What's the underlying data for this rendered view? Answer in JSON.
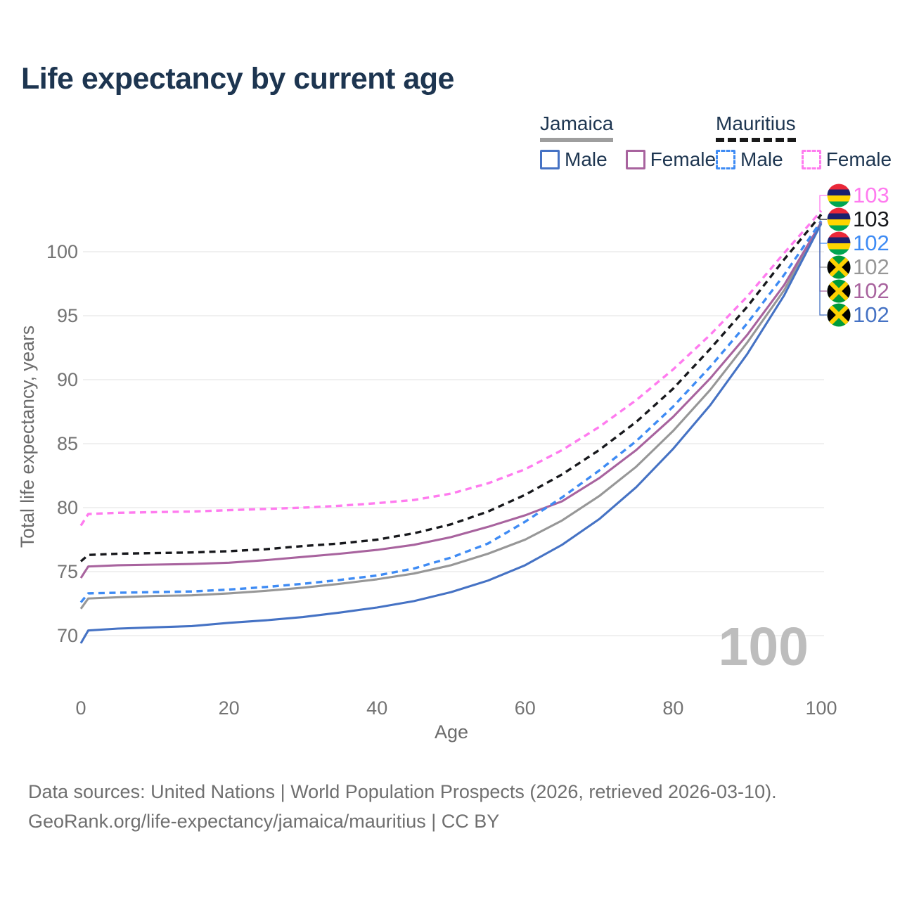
{
  "title": "Life expectancy by current age",
  "legend": {
    "jamaica": {
      "label": "Jamaica",
      "male_label": "Male",
      "female_label": "Female"
    },
    "mauritius": {
      "label": "Mauritius",
      "male_label": "Male",
      "female_label": "Female"
    }
  },
  "watermark_age": "100",
  "footer": {
    "line1": "Data sources: United Nations | World Population Prospects (2026, retrieved 2026-03-10).",
    "line2": "GeoRank.org/life-expectancy/jamaica/mauritius | CC BY"
  },
  "colors": {
    "jamaica_male": "#4572c4",
    "jamaica_female": "#a8639e",
    "jamaica_both": "#979797",
    "mauritius_male": "#3e8bf4",
    "mauritius_female": "#ff7bef",
    "mauritius_both": "#17181c",
    "title_text": "#1d3550",
    "axis_text": "#737373",
    "grid": "#ebebeb",
    "watermark": "#bdbdbd",
    "footer_text": "#6f6f6f",
    "jamaica_underline": "#9e9e9e",
    "mauritius_underline": "#1a1a1a"
  },
  "flags": {
    "mauritius_bands": [
      "#EA2839",
      "#1A206D",
      "#FFD500",
      "#00A551"
    ],
    "jamaica": {
      "green": "#009B3A",
      "black": "#000000",
      "gold": "#FED100"
    }
  },
  "chart_data": {
    "type": "line",
    "title": "Life expectancy by current age",
    "xlabel": "Age",
    "ylabel": "Total life expectancy, years",
    "xlim": [
      0,
      100
    ],
    "ylim": [
      68,
      104
    ],
    "x_ticks": [
      0,
      20,
      40,
      60,
      80,
      100
    ],
    "y_ticks": [
      70,
      75,
      80,
      85,
      90,
      95,
      100
    ],
    "grid": "horizontal-only",
    "legend_position": "top-right",
    "hovered_age": 100,
    "x": [
      0,
      1,
      5,
      10,
      15,
      20,
      25,
      30,
      35,
      40,
      45,
      50,
      55,
      60,
      65,
      70,
      75,
      80,
      85,
      90,
      95,
      100
    ],
    "series": [
      {
        "name": "Mauritius Female",
        "country": "Mauritius",
        "sex": "Female",
        "color": "#ff7bef",
        "dash": true,
        "flag": "mauritius",
        "end_label": "103",
        "label_index": 0,
        "values": [
          78.6,
          79.5,
          79.6,
          79.65,
          79.7,
          79.8,
          79.9,
          80.0,
          80.15,
          80.35,
          80.6,
          81.1,
          81.9,
          83.0,
          84.5,
          86.3,
          88.4,
          90.8,
          93.5,
          96.5,
          99.9,
          103.2
        ]
      },
      {
        "name": "Mauritius Both sexes",
        "country": "Mauritius",
        "sex": "Both",
        "color": "#17181c",
        "dash": true,
        "flag": "mauritius",
        "end_label": "103",
        "label_index": 1,
        "values": [
          75.8,
          76.3,
          76.4,
          76.45,
          76.5,
          76.6,
          76.75,
          77.0,
          77.2,
          77.5,
          78.0,
          78.7,
          79.7,
          81.0,
          82.6,
          84.5,
          86.7,
          89.3,
          92.4,
          95.7,
          99.4,
          102.9
        ]
      },
      {
        "name": "Mauritius Male",
        "country": "Mauritius",
        "sex": "Male",
        "color": "#3e8bf4",
        "dash": true,
        "flag": "mauritius",
        "end_label": "102",
        "label_index": 2,
        "values": [
          72.6,
          73.3,
          73.35,
          73.4,
          73.45,
          73.6,
          73.8,
          74.05,
          74.35,
          74.7,
          75.25,
          76.1,
          77.2,
          78.9,
          80.8,
          82.9,
          85.2,
          87.9,
          91.0,
          94.4,
          98.2,
          102.4
        ]
      },
      {
        "name": "Jamaica Both sexes",
        "country": "Jamaica",
        "sex": "Both",
        "color": "#979797",
        "dash": false,
        "flag": "jamaica",
        "end_label": "102",
        "label_index": 3,
        "values": [
          72.1,
          72.9,
          73.0,
          73.1,
          73.15,
          73.3,
          73.5,
          73.75,
          74.05,
          74.4,
          74.85,
          75.5,
          76.4,
          77.5,
          79.0,
          80.9,
          83.2,
          86.0,
          89.2,
          92.9,
          97.0,
          102.3
        ]
      },
      {
        "name": "Jamaica Female",
        "country": "Jamaica",
        "sex": "Female",
        "color": "#a8639e",
        "dash": false,
        "flag": "jamaica",
        "end_label": "102",
        "label_index": 4,
        "values": [
          74.5,
          75.4,
          75.5,
          75.55,
          75.6,
          75.7,
          75.9,
          76.15,
          76.4,
          76.7,
          77.1,
          77.7,
          78.5,
          79.4,
          80.5,
          82.3,
          84.5,
          87.1,
          90.1,
          93.5,
          97.4,
          102.3
        ]
      },
      {
        "name": "Jamaica Male",
        "country": "Jamaica",
        "sex": "Male",
        "color": "#4572c4",
        "dash": false,
        "flag": "jamaica",
        "end_label": "102",
        "label_index": 5,
        "values": [
          69.4,
          70.4,
          70.55,
          70.65,
          70.75,
          71.0,
          71.2,
          71.45,
          71.8,
          72.2,
          72.7,
          73.4,
          74.3,
          75.5,
          77.1,
          79.1,
          81.6,
          84.6,
          88.0,
          92.0,
          96.6,
          102.2
        ]
      }
    ]
  }
}
